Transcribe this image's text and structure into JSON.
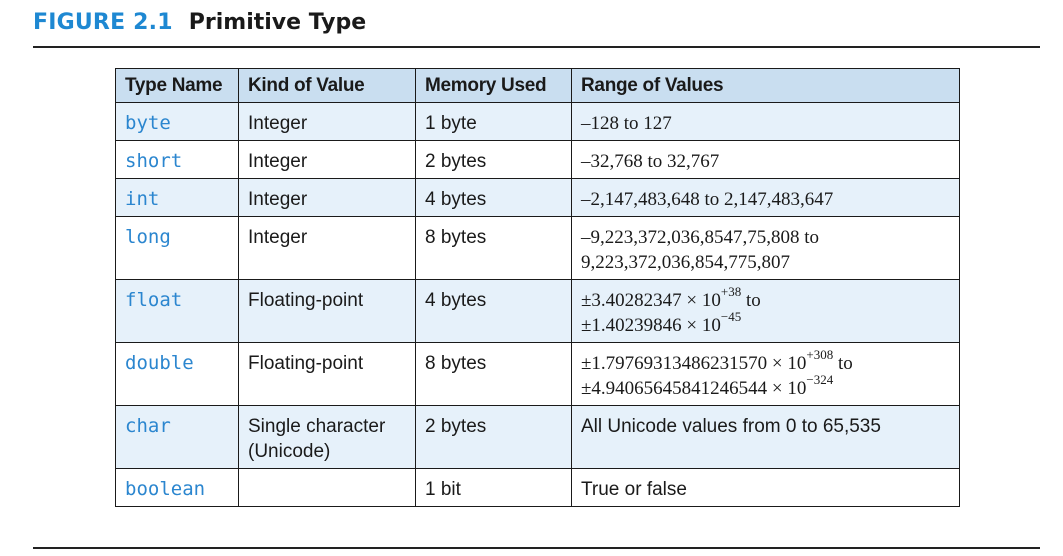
{
  "figure": {
    "label": "FIGURE 2.1",
    "title": "Primitive Type"
  },
  "table": {
    "headers": [
      "Type Name",
      "Kind of Value",
      "Memory Used",
      "Range of Values"
    ],
    "rows": [
      {
        "type": "byte",
        "kind": "Integer",
        "memory": "1 byte",
        "range": "–128 to 127"
      },
      {
        "type": "short",
        "kind": "Integer",
        "memory": "2 bytes",
        "range": "–32,768 to 32,767"
      },
      {
        "type": "int",
        "kind": "Integer",
        "memory": "4 bytes",
        "range": "–2,147,483,648 to 2,147,483,647"
      },
      {
        "type": "long",
        "kind": "Integer",
        "memory": "8 bytes",
        "range_line1": "–9,223,372,036,8547,75,808 to",
        "range_line2": "9,223,372,036,854,775,807"
      },
      {
        "type": "float",
        "kind": "Floating-point",
        "memory": "4 bytes",
        "range_line1_base": "±3.40282347 × 10",
        "range_line1_exp": "+38",
        "range_line1_tail": " to",
        "range_line2_base": "±1.40239846 × 10",
        "range_line2_exp": "−45"
      },
      {
        "type": "double",
        "kind": "Floating-point",
        "memory": "8 bytes",
        "range_line1_base": "±1.79769313486231570 × 10",
        "range_line1_exp": "+308",
        "range_line1_tail": " to",
        "range_line2_base": "±4.94065645841246544 × 10",
        "range_line2_exp": "−324"
      },
      {
        "type": "char",
        "kind_line1": "Single character",
        "kind_line2": "(Unicode)",
        "memory": "2 bytes",
        "range": "All Unicode values from 0 to 65,535"
      },
      {
        "type": "boolean",
        "kind": "",
        "memory": "1 bit",
        "range": "True or false"
      }
    ]
  },
  "colors": {
    "accent": "#1e88d2",
    "header_fill": "#c9def0",
    "row_shade": "#e6f1fa"
  }
}
